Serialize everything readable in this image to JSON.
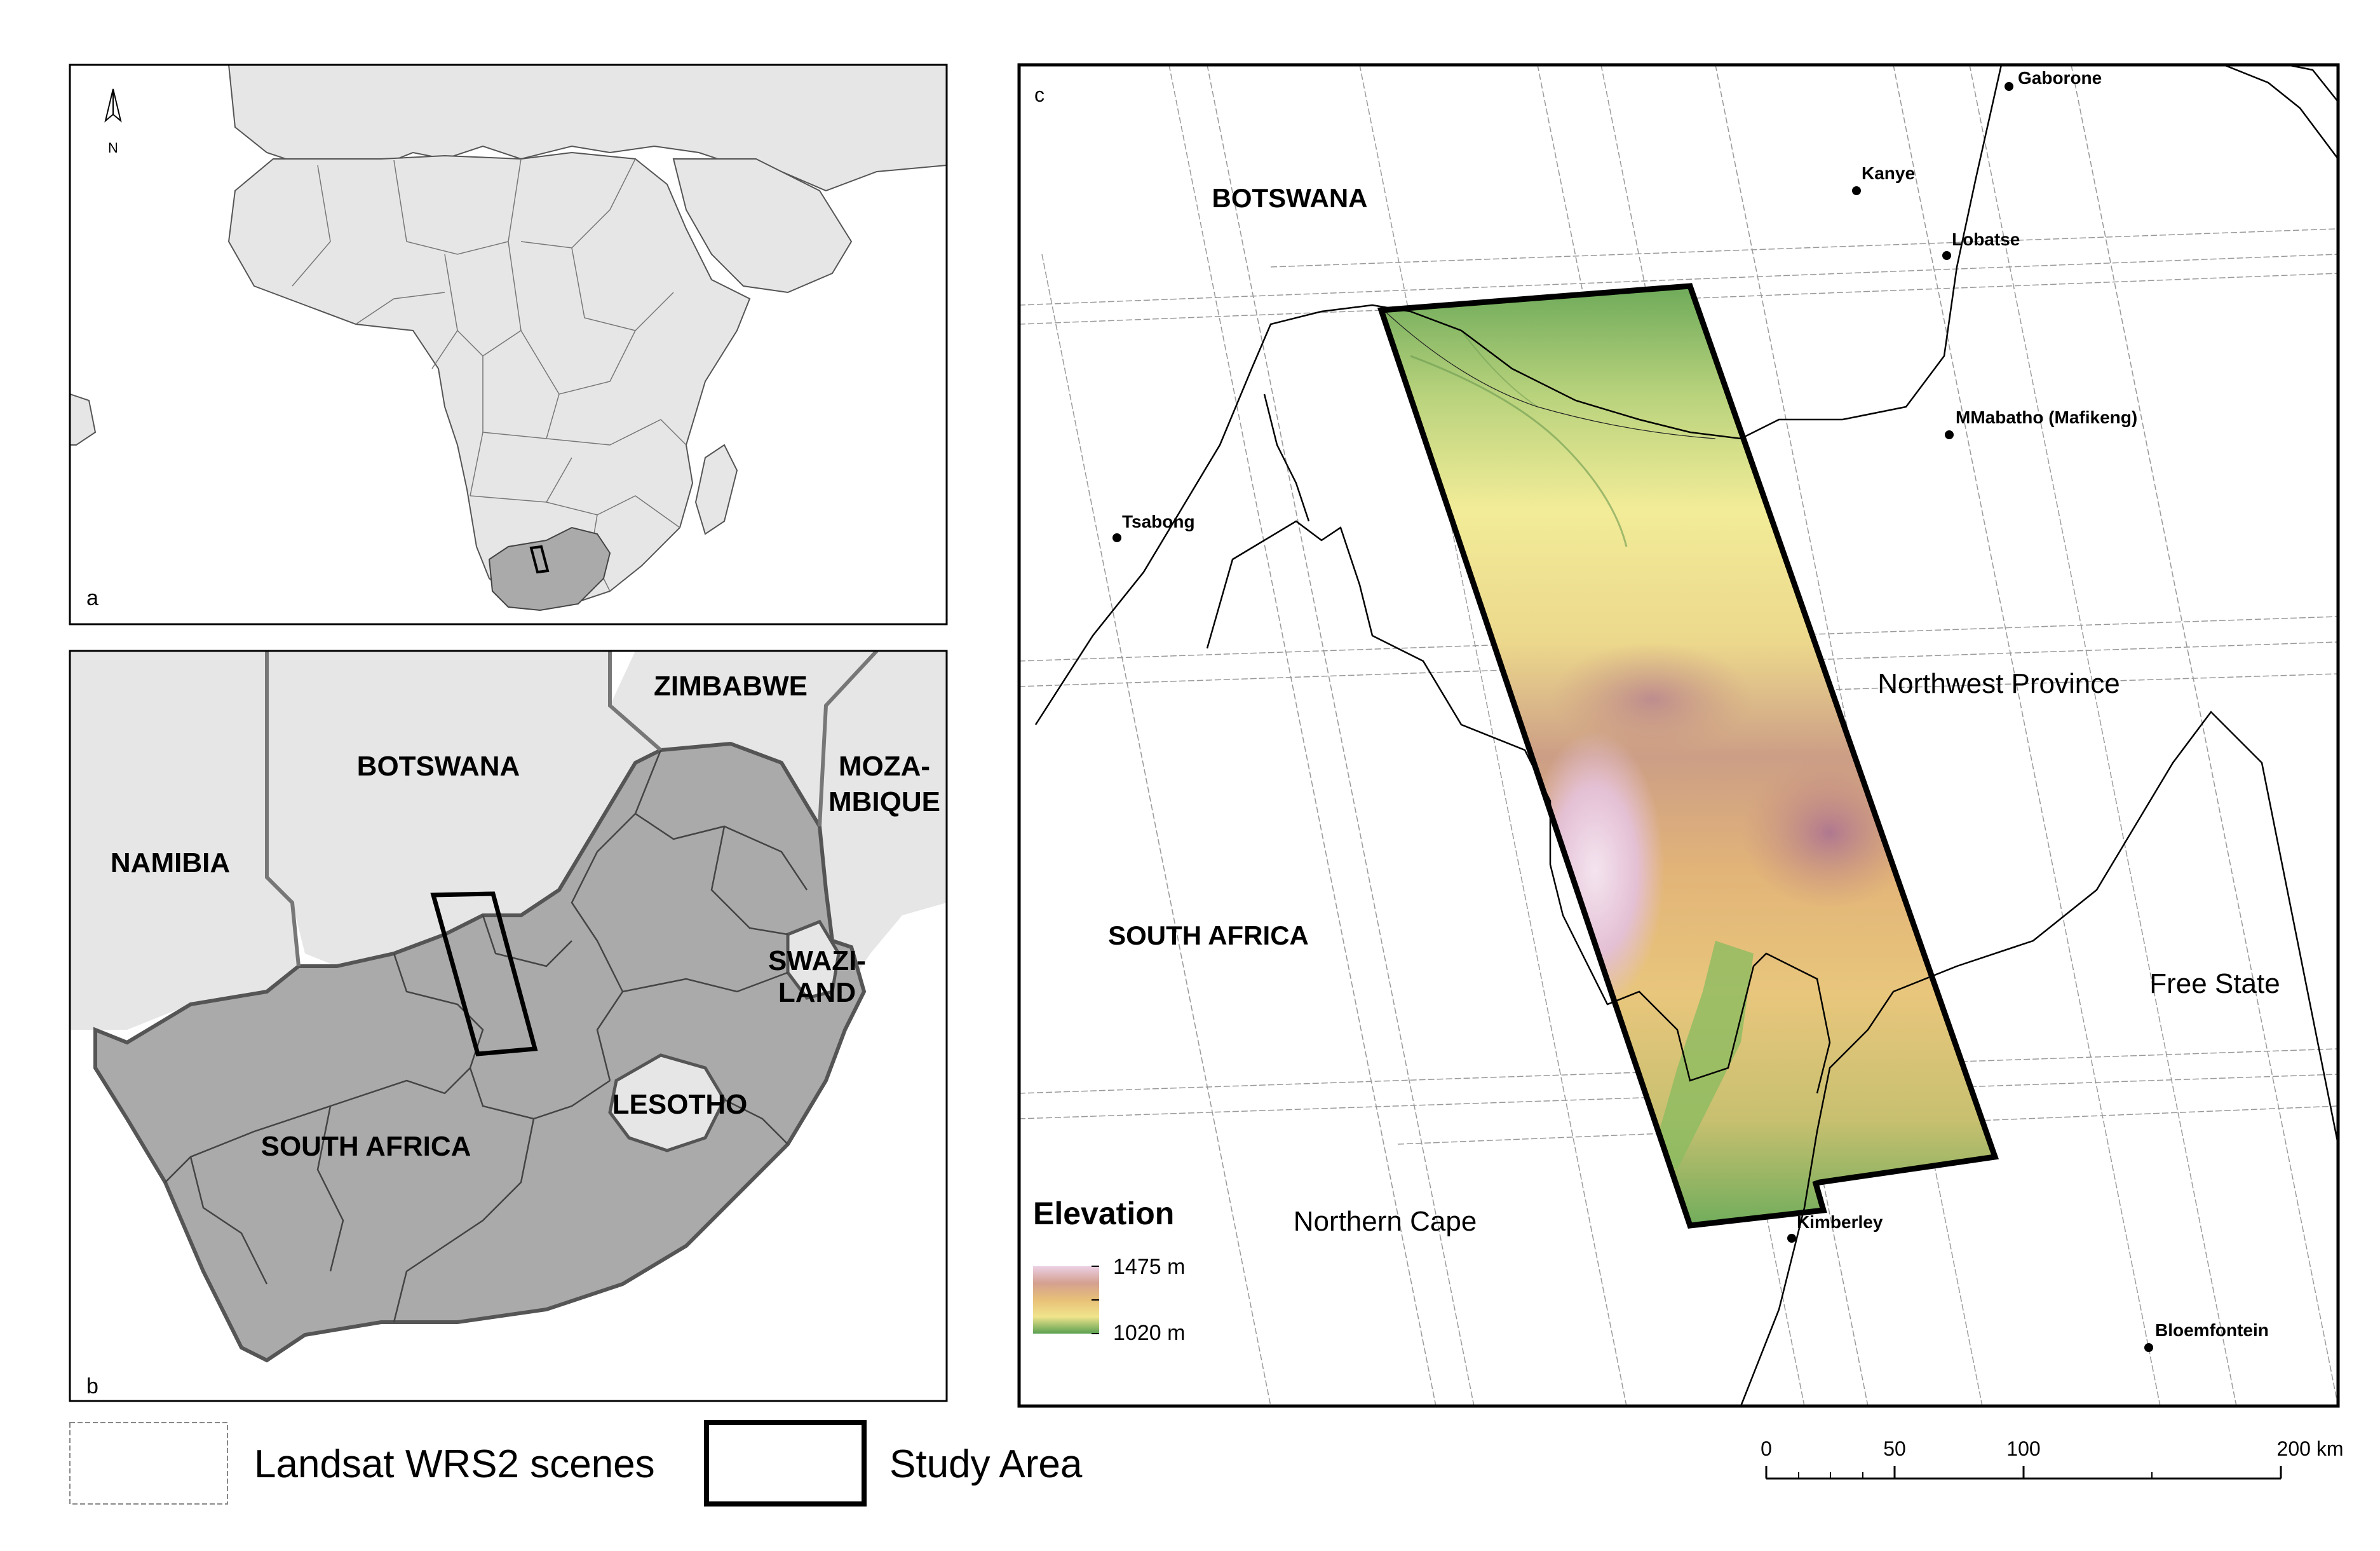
{
  "panel_a": {
    "letter": "a",
    "north_label": "N"
  },
  "panel_b": {
    "letter": "b",
    "countries": {
      "zimbabwe": "ZIMBABWE",
      "botswana": "BOTSWANA",
      "namibia": "NAMIBIA",
      "mozambique_line1": "MOZA-",
      "mozambique_line2": "MBIQUE",
      "swaziland_line1": "SWAZI-",
      "swaziland_line2": "LAND",
      "lesotho": "LESOTHO",
      "south_africa": "SOUTH AFRICA"
    }
  },
  "panel_c": {
    "letter": "c",
    "countries": {
      "botswana": "BOTSWANA",
      "south_africa": "SOUTH AFRICA"
    },
    "provinces": {
      "northwest": "Northwest Province",
      "free_state": "Free State",
      "northern_cape": "Northern Cape"
    },
    "towns": {
      "gaborone": "Gaborone",
      "kanye": "Kanye",
      "lobatse": "Lobatse",
      "mmabatho": "MMabatho (Mafikeng)",
      "tsabong": "Tsabong",
      "kimberley": "Kimberley",
      "bloemfontein": "Bloemfontein"
    },
    "elevation_legend": {
      "title": "Elevation",
      "max_label": "1475 m",
      "min_label": "1020 m",
      "colors": [
        "#e8c8dc",
        "#d4a088",
        "#e8b870",
        "#f0e088",
        "#a8c870",
        "#5aa050"
      ]
    },
    "scale_bar": {
      "labels": [
        "0",
        "50",
        "100",
        "200 km"
      ]
    }
  },
  "legend": {
    "wrs2_label": "Landsat WRS2 scenes",
    "study_area_label": "Study Area"
  },
  "colors": {
    "land_light": "#e6e6e6",
    "south_africa_fill": "#aaaaaa",
    "border": "#333333",
    "study_area": "#000000"
  }
}
